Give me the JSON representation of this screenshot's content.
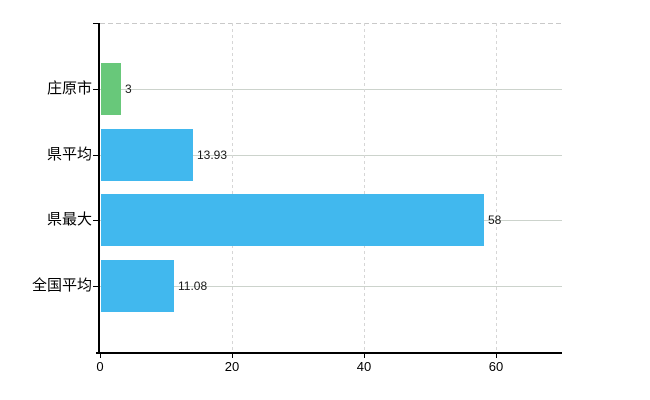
{
  "chart_data": {
    "type": "bar",
    "orientation": "horizontal",
    "title": "",
    "xlabel": "",
    "ylabel": "",
    "categories": [
      "庄原市",
      "県平均",
      "県最大",
      "全国平均"
    ],
    "values": [
      3,
      13.93,
      58,
      11.08
    ],
    "value_labels": [
      "3",
      "13.93",
      "58",
      "11.08"
    ],
    "bar_colors": [
      "#68c87a",
      "#41b8ee",
      "#41b8ee",
      "#41b8ee"
    ],
    "x_tick_values": [
      0,
      20,
      40,
      60
    ],
    "x_tick_labels": [
      "0",
      "20",
      "40",
      "60"
    ],
    "xlim": [
      0,
      70
    ],
    "legend": "none",
    "grid": {
      "horizontal": "solid",
      "vertical": "dashed",
      "top_border": "dashed"
    },
    "colors": {
      "bar_blue": "#41b8ee",
      "bar_green": "#68c87a",
      "grid_solid": "#ccd3cc",
      "grid_dashed": "#d6d6d6",
      "axis": "#000000",
      "value_text": "#1a1a1a",
      "tick_text": "#000000",
      "background": "#ffffff"
    }
  }
}
